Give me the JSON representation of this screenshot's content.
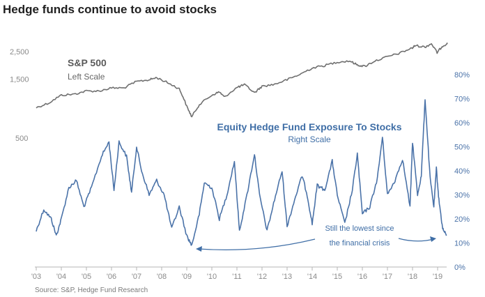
{
  "title": "Hedge funds continue to avoid stocks",
  "source": "Source: S&P, Hedge Fund Research",
  "colors": {
    "sp500": "#6f6f6f",
    "hedge": "#4a72a8",
    "axis": "#9a9a9a",
    "text": "#1f1f1f"
  },
  "chart_data": {
    "type": "line",
    "title": "Hedge funds continue to avoid stocks",
    "x_ticks": [
      "'03",
      "'04",
      "'05",
      "'06",
      "'07",
      "'08",
      "'09",
      "'10",
      "'11",
      "'12",
      "'13",
      "'14",
      "'15",
      "'16",
      "'17",
      "'18",
      "'19"
    ],
    "x_range": [
      2003,
      2019.5
    ],
    "left_axis": {
      "scale": "log",
      "ticks": [
        "500",
        "1,500",
        "2,500"
      ],
      "tick_values": [
        500,
        1500,
        2500
      ]
    },
    "right_axis": {
      "ticks": [
        "0%",
        "10%",
        "20%",
        "30%",
        "40%",
        "50%",
        "60%",
        "70%",
        "80%"
      ],
      "ylim": [
        0,
        80
      ]
    },
    "series": [
      {
        "name": "S&P 500",
        "label": "S&P 500",
        "sublabel": "Left Scale",
        "axis": "left",
        "x": [
          2003.0,
          2003.5,
          2004.0,
          2004.5,
          2005.0,
          2005.5,
          2006.0,
          2006.5,
          2007.0,
          2007.5,
          2007.8,
          2008.3,
          2008.7,
          2009.0,
          2009.2,
          2009.5,
          2010.0,
          2010.3,
          2010.5,
          2011.0,
          2011.3,
          2011.7,
          2012.0,
          2012.5,
          2013.0,
          2013.5,
          2014.0,
          2014.5,
          2015.0,
          2015.5,
          2015.8,
          2016.1,
          2016.5,
          2017.0,
          2017.5,
          2018.0,
          2018.1,
          2018.5,
          2018.75,
          2018.98,
          2019.2,
          2019.4
        ],
        "y": [
          880,
          960,
          1110,
          1130,
          1200,
          1200,
          1270,
          1270,
          1430,
          1480,
          1540,
          1380,
          1250,
          900,
          740,
          930,
          1110,
          1180,
          1070,
          1280,
          1350,
          1160,
          1310,
          1360,
          1480,
          1630,
          1840,
          1930,
          2060,
          2100,
          1950,
          1900,
          2100,
          2270,
          2430,
          2680,
          2800,
          2720,
          2900,
          2450,
          2780,
          2900
        ]
      },
      {
        "name": "Equity Hedge Fund Exposure To Stocks",
        "label": "Equity Hedge Fund Exposure To Stocks",
        "sublabel": "Right Scale",
        "axis": "right",
        "x": [
          2003.0,
          2003.3,
          2003.6,
          2003.8,
          2004.0,
          2004.3,
          2004.6,
          2004.9,
          2005.2,
          2005.6,
          2005.9,
          2006.1,
          2006.3,
          2006.6,
          2006.8,
          2007.0,
          2007.2,
          2007.5,
          2007.8,
          2008.1,
          2008.4,
          2008.7,
          2009.0,
          2009.2,
          2009.5,
          2009.7,
          2010.0,
          2010.3,
          2010.6,
          2010.9,
          2011.1,
          2011.4,
          2011.7,
          2011.9,
          2012.2,
          2012.5,
          2012.8,
          2013.0,
          2013.3,
          2013.6,
          2013.8,
          2014.0,
          2014.2,
          2014.5,
          2014.8,
          2015.0,
          2015.3,
          2015.6,
          2015.8,
          2016.0,
          2016.3,
          2016.6,
          2016.8,
          2017.0,
          2017.3,
          2017.6,
          2017.9,
          2018.0,
          2018.2,
          2018.35,
          2018.5,
          2018.7,
          2018.85,
          2018.95,
          2019.05,
          2019.2,
          2019.35
        ],
        "y": [
          15,
          24,
          20,
          13,
          20,
          33,
          36,
          25,
          33,
          46,
          52,
          32,
          52,
          46,
          31,
          50,
          40,
          30,
          36,
          30,
          16,
          25,
          13,
          9,
          22,
          35,
          33,
          20,
          30,
          44,
          15,
          30,
          47,
          30,
          15,
          28,
          40,
          17,
          28,
          38,
          30,
          18,
          34,
          32,
          44,
          30,
          18,
          32,
          47,
          22,
          25,
          37,
          54,
          30,
          36,
          45,
          25,
          52,
          30,
          38,
          70,
          37,
          25,
          41,
          28,
          16,
          13
        ]
      }
    ],
    "annotations": [
      "Still the lowest since",
      "the financial crisis"
    ],
    "grid": false
  }
}
